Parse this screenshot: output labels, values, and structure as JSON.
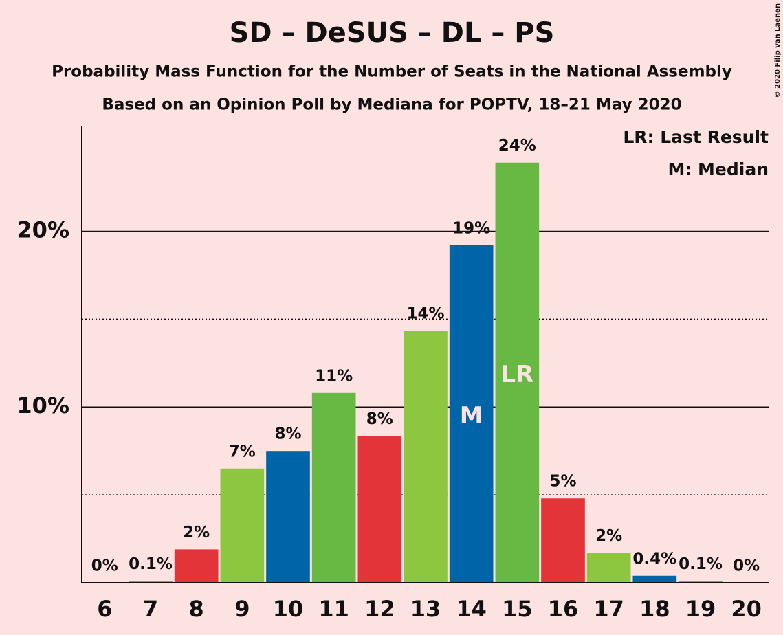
{
  "chart_data": {
    "type": "bar",
    "title": "SD – DeSUS – DL – PS",
    "subtitle": "Probability Mass Function for the Number of Seats in the National Assembly",
    "subtitle2": "Based on an Opinion Poll by Mediana for POPTV, 18–21 May 2020",
    "categories": [
      "6",
      "7",
      "8",
      "9",
      "10",
      "11",
      "12",
      "13",
      "14",
      "15",
      "16",
      "17",
      "18",
      "19",
      "20"
    ],
    "values": [
      0,
      0.1,
      1.9,
      6.5,
      7.5,
      10.8,
      8.35,
      14.35,
      19.2,
      23.9,
      4.8,
      1.7,
      0.4,
      0.1,
      0
    ],
    "value_labels": [
      "0%",
      "0.1%",
      "2%",
      "7%",
      "8%",
      "11%",
      "8%",
      "14%",
      "19%",
      "24%",
      "5%",
      "2%",
      "0.4%",
      "0.1%",
      "0%"
    ],
    "colors": [
      "#0064a8",
      "#67b944",
      "#e3343a",
      "#8dc63f",
      "#0064a8",
      "#67b944",
      "#e3343a",
      "#8dc63f",
      "#0064a8",
      "#67b944",
      "#e3343a",
      "#8dc63f",
      "#0064a8",
      "#67b944",
      "#e3343a"
    ],
    "ylim": [
      0,
      26
    ],
    "yticks": [
      {
        "value": 10,
        "label": "10%"
      },
      {
        "value": 20,
        "label": "20%"
      }
    ],
    "minor_gridlines": [
      5,
      15
    ],
    "grid": true,
    "annotations": [
      {
        "text": "M",
        "category": "14"
      },
      {
        "text": "LR",
        "category": "15"
      }
    ],
    "legend_entries": [
      "LR: Last Result",
      "M: Median"
    ],
    "legend_position": "upper right"
  },
  "credit": "© 2020 Filip van Laenen"
}
